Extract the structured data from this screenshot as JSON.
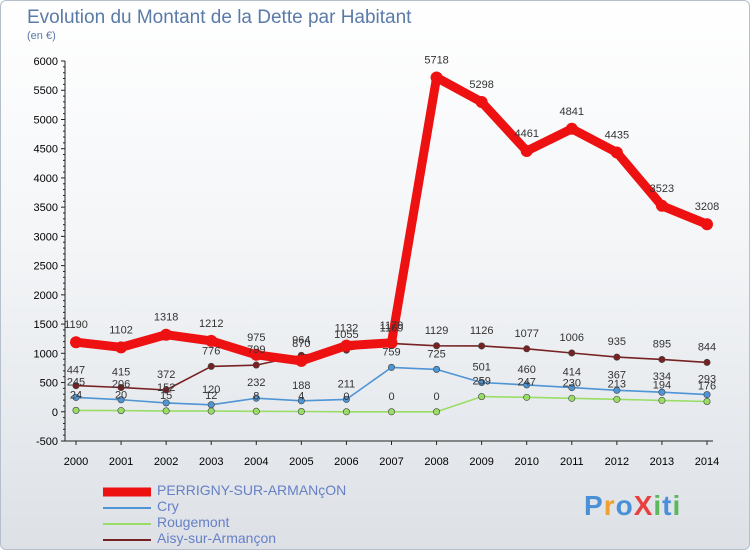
{
  "chart_data": {
    "type": "line",
    "title": "Evolution du Montant de la Dette par Habitant",
    "unit": "(en €)",
    "x": [
      "2000",
      "2001",
      "2002",
      "2003",
      "2004",
      "2005",
      "2006",
      "2007",
      "2008",
      "2009",
      "2010",
      "2011",
      "2012",
      "2013",
      "2014"
    ],
    "y_ticks": [
      "-500",
      "0",
      "500",
      "1000",
      "1500",
      "2000",
      "2500",
      "3000",
      "3500",
      "4000",
      "4500",
      "5000",
      "5500",
      "6000"
    ],
    "ylim": [
      -500,
      6000
    ],
    "grid": false,
    "legend_position": "bottom-left",
    "series": [
      {
        "name": "PERRIGNY-SUR-ARMANçON",
        "color": "#ee1111",
        "values": [
          1190,
          1102,
          1318,
          1212,
          975,
          870,
          1132,
          1179,
          5718,
          5298,
          4461,
          4841,
          4435,
          3523,
          3208
        ],
        "labels": [
          "1190",
          "1102",
          "1318",
          "1212",
          "975",
          "870",
          "1132",
          "1179",
          "5718",
          "5298",
          "4461",
          "4841",
          "4435",
          "3523",
          "3208"
        ]
      },
      {
        "name": "Cry",
        "color": "#4f94d4",
        "values": [
          245,
          206,
          152,
          120,
          232,
          188,
          211,
          759,
          725,
          501,
          460,
          414,
          367,
          334,
          293
        ],
        "labels": [
          "245",
          "206",
          "152",
          "120",
          "232",
          "188",
          "211",
          "759",
          "725",
          "501",
          "460",
          "414",
          "367",
          "334",
          "293"
        ]
      },
      {
        "name": "Rougemont",
        "color": "#99dd66",
        "values": [
          24,
          20,
          15,
          12,
          8,
          4,
          0,
          0,
          0,
          259,
          247,
          230,
          213,
          194,
          176
        ],
        "labels": [
          "24",
          "20",
          "15",
          "12",
          "8",
          "4",
          "0",
          "0",
          "0",
          "259",
          "247",
          "230",
          "213",
          "194",
          "176"
        ]
      },
      {
        "name": "Aisy-sur-Armançon",
        "color": "#772222",
        "values": [
          447,
          415,
          372,
          776,
          799,
          964,
          1055,
          1169,
          1129,
          1126,
          1077,
          1006,
          935,
          895,
          844
        ],
        "labels": [
          "447",
          "415",
          "372",
          "776",
          "799",
          "964",
          "1055",
          "1169",
          "1129",
          "1126",
          "1077",
          "1006",
          "935",
          "895",
          "844"
        ]
      }
    ]
  },
  "logo": {
    "text": "ProXiti"
  }
}
